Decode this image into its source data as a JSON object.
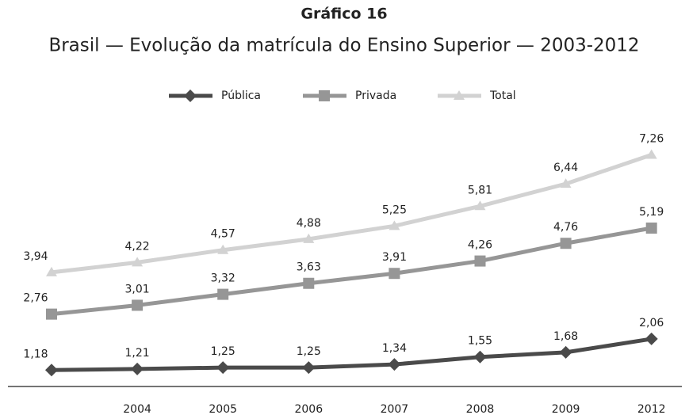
{
  "chart_data": {
    "type": "line",
    "title": "Gráfico 16",
    "subtitle": "Brasil — Evolução da matrícula do Ensino Superior — 2003-2012",
    "categories": [
      null,
      "2004",
      "2005",
      "2006",
      "2007",
      "2008",
      "2009",
      "2012"
    ],
    "legend": "top",
    "series": [
      {
        "name": "Pública",
        "color": "#4a4a4a",
        "marker": "diamond",
        "values": [
          1.18,
          1.21,
          1.25,
          1.25,
          1.34,
          1.55,
          1.68,
          2.06
        ],
        "value_labels": [
          "1,18",
          "1,21",
          "1,25",
          "1,25",
          "1,34",
          "1,55",
          "1,68",
          "2,06"
        ]
      },
      {
        "name": "Privada",
        "color": "#969696",
        "marker": "square",
        "values": [
          2.76,
          3.01,
          3.32,
          3.63,
          3.91,
          4.26,
          4.76,
          5.19
        ],
        "value_labels": [
          "2,76",
          "3,01",
          "3,32",
          "3,63",
          "3,91",
          "4,26",
          "4,76",
          "5,19"
        ]
      },
      {
        "name": "Total",
        "color": "#d2d2d2",
        "marker": "triangle",
        "values": [
          3.94,
          4.22,
          4.57,
          4.88,
          5.25,
          5.81,
          6.44,
          7.26
        ],
        "value_labels": [
          "3,94",
          "4,22",
          "4,57",
          "4,88",
          "5,25",
          "5,81",
          "6,44",
          "7,26"
        ]
      }
    ]
  }
}
